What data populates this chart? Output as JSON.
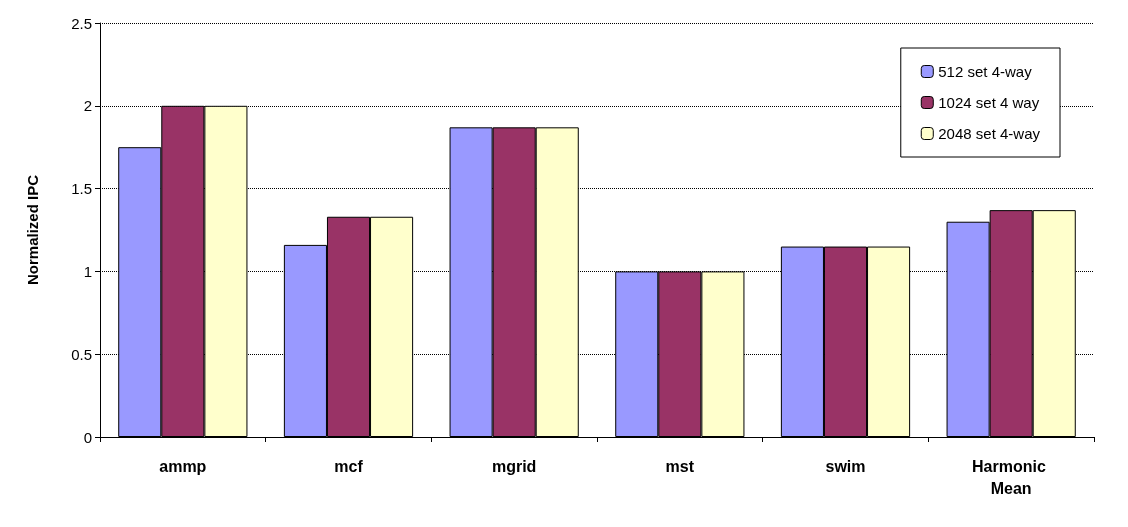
{
  "chart_data": {
    "type": "bar",
    "ylabel": "Normalized IPC",
    "categories": [
      "ammp",
      "mcf",
      "mgrid",
      "mst",
      "swim",
      "Harmonic Mean"
    ],
    "series": [
      {
        "name": "512 set 4-way",
        "color": "#9999ff",
        "values": [
          1.75,
          1.16,
          1.87,
          1.0,
          1.15,
          1.3
        ]
      },
      {
        "name": "1024 set 4 way",
        "color": "#993366",
        "values": [
          2.0,
          1.33,
          1.87,
          1.0,
          1.15,
          1.37
        ]
      },
      {
        "name": "2048 set 4-way",
        "color": "#ffffcc",
        "values": [
          2.0,
          1.33,
          1.87,
          1.0,
          1.15,
          1.37
        ]
      }
    ],
    "ylim": [
      0,
      2.5
    ],
    "yticks": [
      0,
      0.5,
      1,
      1.5,
      2,
      2.5
    ],
    "grid": "y",
    "legend": "top right"
  }
}
